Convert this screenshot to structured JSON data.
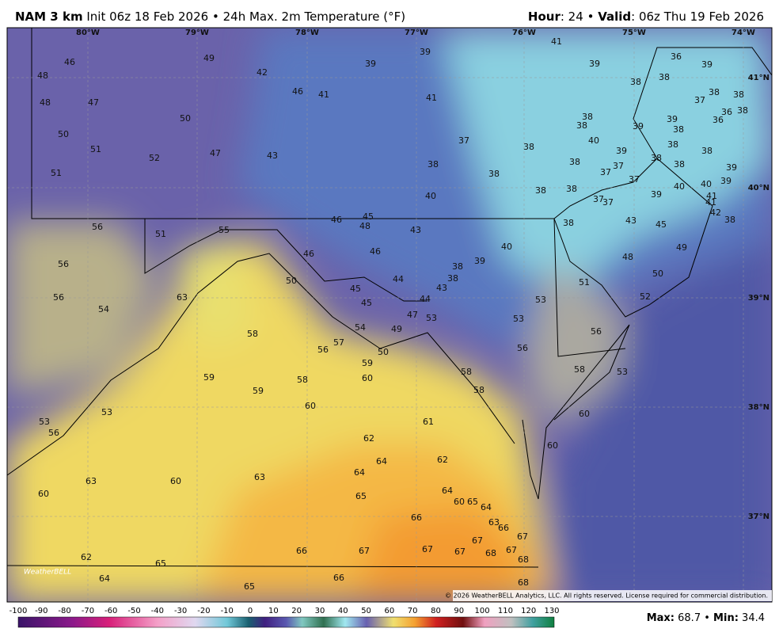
{
  "header": {
    "model": "NAM 3 km",
    "init": "Init 06z 18 Feb 2026",
    "separator": "•",
    "product": "24h Max. 2m Temperature (°F)",
    "hour_label": "Hour",
    "hour_value": ": 24",
    "valid_label": "Valid",
    "valid_value": ": 06z Thu 19 Feb 2026"
  },
  "map": {
    "longitudes": [
      "80°W",
      "79°W",
      "78°W",
      "77°W",
      "76°W",
      "75°W",
      "74°W"
    ],
    "latitudes": [
      "41°N",
      "40°N",
      "39°N",
      "38°N",
      "37°N"
    ],
    "values": [
      46,
      49,
      48,
      42,
      39,
      39,
      41,
      36,
      39,
      48,
      47,
      46,
      41,
      41,
      39,
      38,
      38,
      38,
      38,
      37,
      50,
      38,
      38,
      39,
      39,
      38,
      36,
      36,
      38,
      50,
      51,
      52,
      47,
      43,
      37,
      38,
      40,
      39,
      38,
      38,
      38,
      51,
      38,
      38,
      38,
      37,
      37,
      38,
      39,
      37,
      39,
      40,
      40,
      39,
      41,
      41,
      40,
      38,
      38,
      37,
      37,
      42,
      38,
      56,
      55,
      46,
      45,
      48,
      43,
      38,
      43,
      45,
      51,
      46,
      46,
      40,
      39,
      38,
      49,
      48,
      56,
      50,
      44,
      38,
      43,
      51,
      50,
      56,
      63,
      45,
      44,
      45,
      53,
      52,
      54,
      47,
      53,
      54,
      49,
      53,
      58,
      57,
      56,
      56,
      56,
      50,
      59,
      58,
      58,
      53,
      59,
      58,
      60,
      59,
      58,
      60,
      53,
      60,
      53,
      56,
      61,
      62,
      60,
      64,
      62,
      64,
      63,
      60,
      63,
      60,
      64,
      65,
      60,
      65,
      64,
      66,
      63,
      66,
      67,
      67,
      66,
      67,
      67,
      67,
      68,
      67,
      62,
      65,
      68,
      64,
      66,
      68,
      65
    ],
    "copyright": "© 2026 WeatherBELL Analytics, LLC. All rights reserved. License required for commercial distribution.",
    "logo": "WeatherBELL"
  },
  "colorbar": {
    "ticks": [
      -100,
      -90,
      -80,
      -70,
      -60,
      -50,
      -40,
      -30,
      -20,
      -10,
      0,
      10,
      20,
      30,
      40,
      50,
      60,
      70,
      80,
      90,
      100,
      110,
      120,
      130
    ]
  },
  "footer": {
    "max_label": "Max:",
    "max": 68.7,
    "separator": "•",
    "min_label": "Min:",
    "min": 34.4
  }
}
